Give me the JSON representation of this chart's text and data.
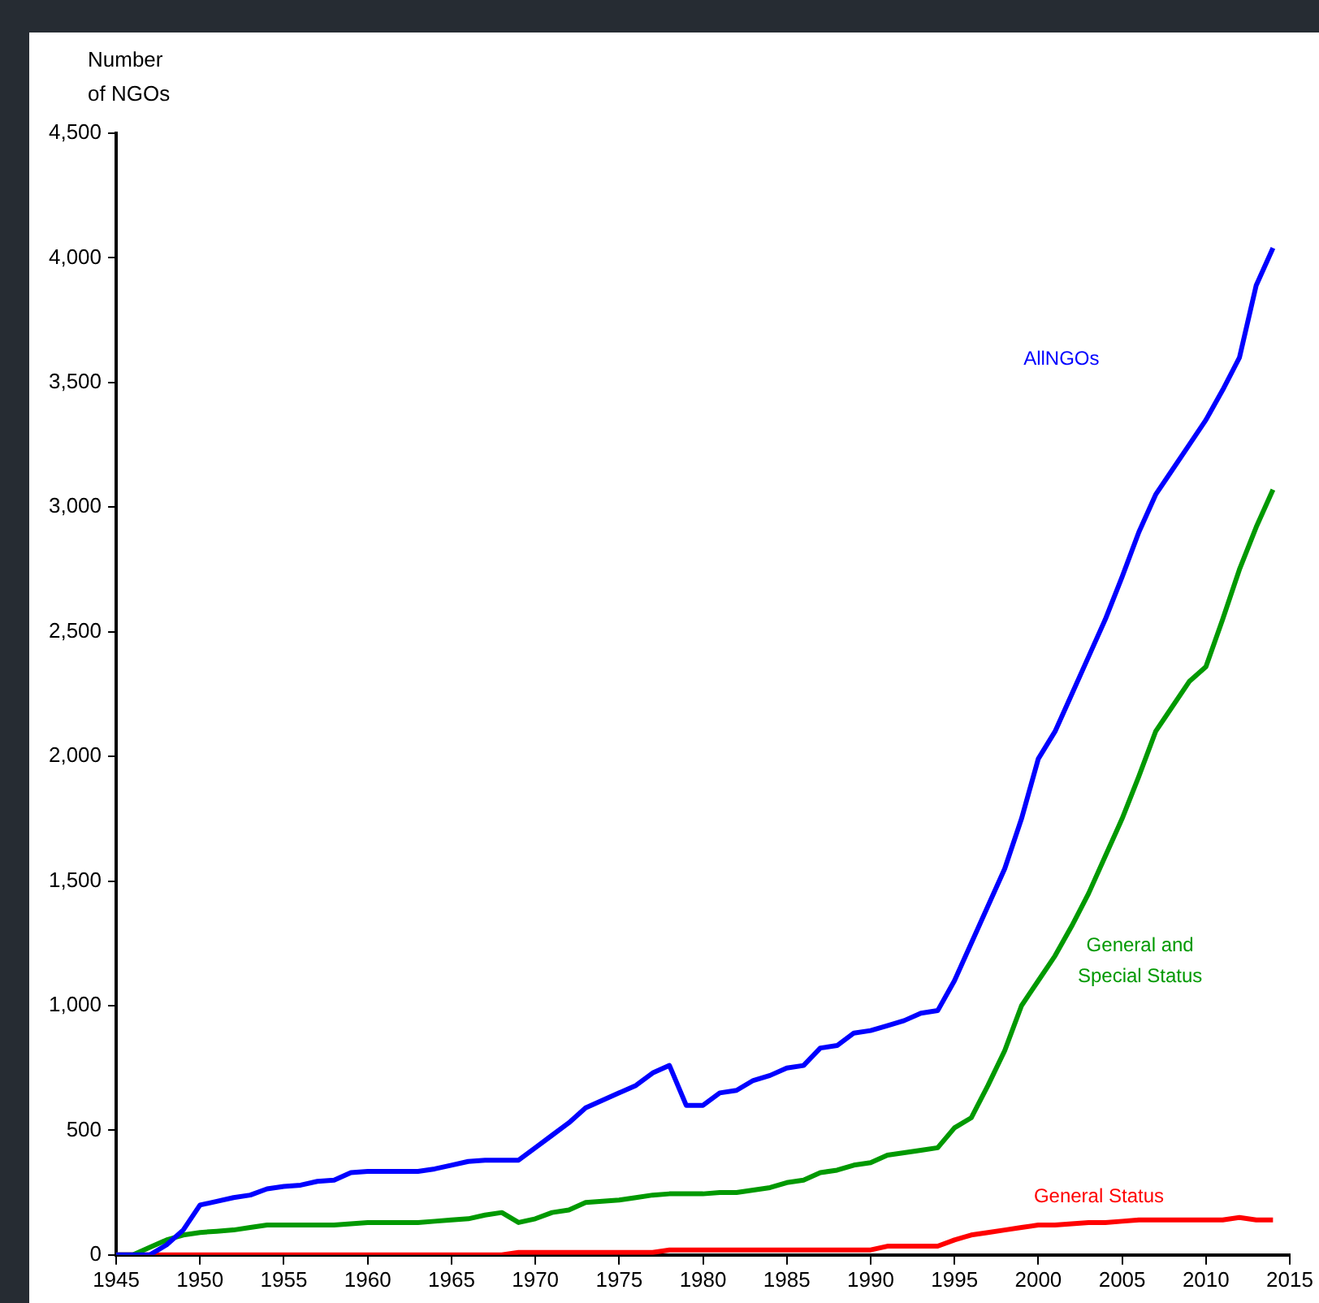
{
  "chart_data": {
    "type": "line",
    "ylabel": "Number of NGOs",
    "xlim": [
      1945,
      2015
    ],
    "xticks": [
      1945,
      1950,
      1955,
      1960,
      1965,
      1970,
      1975,
      1980,
      1985,
      1990,
      1995,
      2000,
      2005,
      2010,
      2015
    ],
    "ylim": [
      0,
      4500
    ],
    "yticks": [
      {
        "value": 0,
        "label": "0"
      },
      {
        "value": 500,
        "label": "500"
      },
      {
        "value": 1000,
        "label": "1,000"
      },
      {
        "value": 1500,
        "label": "1,500"
      },
      {
        "value": 2000,
        "label": "2,000"
      },
      {
        "value": 2500,
        "label": "2,500"
      },
      {
        "value": 3000,
        "label": "3,000"
      },
      {
        "value": 3500,
        "label": "3,500"
      },
      {
        "value": 4000,
        "label": "4,000"
      },
      {
        "value": 4500,
        "label": "4,500"
      }
    ],
    "grid": false,
    "legend": false,
    "marker": "none",
    "line_style": "solid",
    "x": [
      1945,
      1946,
      1947,
      1948,
      1949,
      1950,
      1951,
      1952,
      1953,
      1954,
      1955,
      1956,
      1957,
      1958,
      1959,
      1960,
      1961,
      1962,
      1963,
      1964,
      1965,
      1966,
      1967,
      1968,
      1969,
      1970,
      1971,
      1972,
      1973,
      1974,
      1975,
      1976,
      1977,
      1978,
      1979,
      1980,
      1981,
      1982,
      1983,
      1984,
      1985,
      1986,
      1987,
      1988,
      1989,
      1990,
      1991,
      1992,
      1993,
      1994,
      1995,
      1996,
      1997,
      1998,
      1999,
      2000,
      2001,
      2002,
      2003,
      2004,
      2005,
      2006,
      2007,
      2008,
      2009,
      2010,
      2011,
      2012,
      2013,
      2014
    ],
    "series": [
      {
        "name": "AllNGOs",
        "color": "#0000ff",
        "values": [
          0,
          0,
          0,
          40,
          100,
          200,
          215,
          230,
          240,
          265,
          275,
          280,
          295,
          300,
          330,
          335,
          335,
          335,
          335,
          345,
          360,
          375,
          380,
          380,
          380,
          430,
          480,
          530,
          590,
          620,
          650,
          680,
          730,
          760,
          600,
          600,
          650,
          660,
          700,
          720,
          750,
          760,
          830,
          840,
          890,
          900,
          920,
          940,
          970,
          980,
          1100,
          1250,
          1400,
          1550,
          1750,
          1990,
          2100,
          2250,
          2400,
          2550,
          2720,
          2900,
          3050,
          3150,
          3250,
          3350,
          3470,
          3600,
          3890,
          4040
        ]
      },
      {
        "name": "General and Special Status",
        "color": "#009900",
        "values": [
          0,
          0,
          30,
          60,
          80,
          90,
          95,
          100,
          110,
          120,
          120,
          120,
          120,
          120,
          125,
          130,
          130,
          130,
          130,
          135,
          140,
          145,
          160,
          170,
          130,
          145,
          170,
          180,
          210,
          215,
          220,
          230,
          240,
          245,
          245,
          245,
          250,
          250,
          260,
          270,
          290,
          300,
          330,
          340,
          360,
          370,
          400,
          410,
          420,
          430,
          510,
          550,
          680,
          820,
          1000,
          1100,
          1200,
          1320,
          1450,
          1600,
          1750,
          1920,
          2100,
          2200,
          2300,
          2360,
          2550,
          2750,
          2920,
          3070
        ]
      },
      {
        "name": "General Status",
        "color": "#ff0000",
        "values": [
          0,
          0,
          0,
          0,
          0,
          0,
          0,
          0,
          0,
          0,
          0,
          0,
          0,
          0,
          0,
          0,
          0,
          0,
          0,
          0,
          0,
          0,
          0,
          0,
          10,
          10,
          10,
          10,
          10,
          10,
          10,
          10,
          10,
          20,
          20,
          20,
          20,
          20,
          20,
          20,
          20,
          20,
          20,
          20,
          20,
          20,
          35,
          35,
          35,
          35,
          60,
          80,
          90,
          100,
          110,
          120,
          120,
          125,
          130,
          130,
          135,
          140,
          140,
          140,
          140,
          140,
          140,
          150,
          140,
          140
        ]
      }
    ]
  }
}
